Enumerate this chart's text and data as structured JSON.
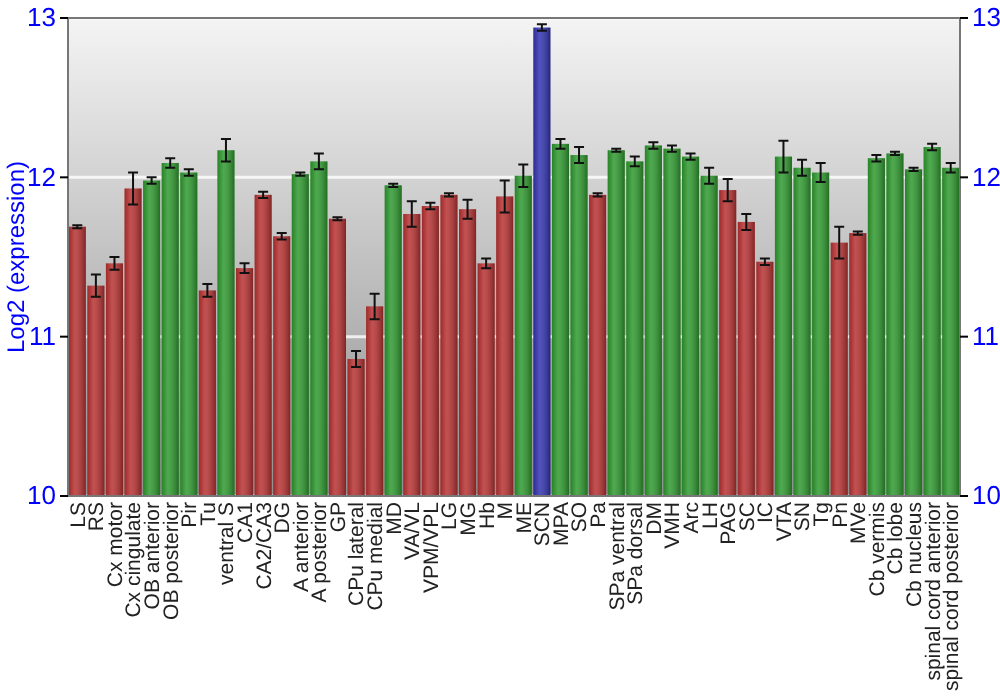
{
  "chart_data": {
    "type": "bar",
    "ylabel": "Log2 (expression)",
    "categories": [
      "LS",
      "RS",
      "Cx motor",
      "Cx cingulate",
      "OB anterior",
      "OB posterior",
      "Pir",
      "Tu",
      "ventral S",
      "CA1",
      "CA2/CA3",
      "DG",
      "A anterior",
      "A posterior",
      "GP",
      "CPu lateral",
      "CPu medial",
      "MD",
      "VA/VL",
      "VPM/VPL",
      "LG",
      "MG",
      "Hb",
      "M",
      "ME",
      "SCN",
      "MPA",
      "SO",
      "Pa",
      "SPa ventral",
      "SPa dorsal",
      "DM",
      "VMH",
      "Arc",
      "LH",
      "PAG",
      "SC",
      "IC",
      "VTA",
      "SN",
      "Tg",
      "Pn",
      "MVe",
      "Cb vermis",
      "Cb lobe",
      "Cb nucleus",
      "spinal cord anterior",
      "spinal cord posterior"
    ],
    "values": [
      11.69,
      11.32,
      11.46,
      11.93,
      11.98,
      12.09,
      12.03,
      11.29,
      12.17,
      11.43,
      11.89,
      11.63,
      12.02,
      12.1,
      11.74,
      10.86,
      11.19,
      11.95,
      11.77,
      11.82,
      11.89,
      11.8,
      11.46,
      11.88,
      12.01,
      12.94,
      12.21,
      12.14,
      11.89,
      12.17,
      12.1,
      12.2,
      12.18,
      12.13,
      12.01,
      11.92,
      11.72,
      11.47,
      12.13,
      12.06,
      12.03,
      11.59,
      11.65,
      12.12,
      12.15,
      12.05,
      12.19,
      12.06
    ],
    "errors": [
      0.01,
      0.07,
      0.04,
      0.1,
      0.02,
      0.03,
      0.02,
      0.04,
      0.07,
      0.03,
      0.02,
      0.02,
      0.01,
      0.05,
      0.01,
      0.05,
      0.08,
      0.01,
      0.08,
      0.02,
      0.01,
      0.06,
      0.03,
      0.1,
      0.07,
      0.02,
      0.03,
      0.05,
      0.01,
      0.01,
      0.03,
      0.02,
      0.02,
      0.02,
      0.05,
      0.07,
      0.05,
      0.02,
      0.1,
      0.05,
      0.06,
      0.1,
      0.01,
      0.02,
      0.01,
      0.01,
      0.02,
      0.03
    ],
    "colors": [
      "#b83232",
      "#b83232",
      "#b83232",
      "#b83232",
      "#2f9a2f",
      "#2f9a2f",
      "#2f9a2f",
      "#b83232",
      "#2f9a2f",
      "#b83232",
      "#b83232",
      "#b83232",
      "#2f9a2f",
      "#2f9a2f",
      "#b83232",
      "#b83232",
      "#b83232",
      "#2f9a2f",
      "#b83232",
      "#b83232",
      "#b83232",
      "#b83232",
      "#b83232",
      "#b83232",
      "#2f9a2f",
      "#3333b0",
      "#2f9a2f",
      "#2f9a2f",
      "#b83232",
      "#2f9a2f",
      "#2f9a2f",
      "#2f9a2f",
      "#2f9a2f",
      "#2f9a2f",
      "#2f9a2f",
      "#b83232",
      "#b83232",
      "#b83232",
      "#2f9a2f",
      "#2f9a2f",
      "#2f9a2f",
      "#b83232",
      "#b83232",
      "#2f9a2f",
      "#2f9a2f",
      "#2f9a2f",
      "#2f9a2f",
      "#2f9a2f"
    ],
    "ylim": [
      10,
      13
    ],
    "yticks": [
      10,
      11,
      12,
      13
    ],
    "y2lim": [
      10,
      13
    ],
    "y2ticks": [
      10,
      11,
      12,
      13
    ],
    "grid": "y"
  }
}
